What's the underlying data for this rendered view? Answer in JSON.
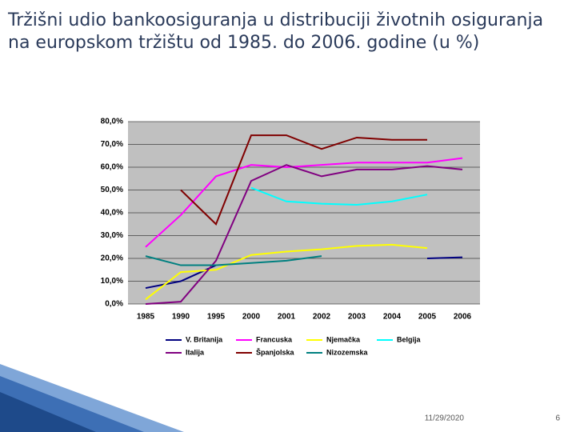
{
  "chart_data": {
    "type": "line",
    "title": "Tržišni udio bankoosiguranja u distribuciji životnih osiguranja na europskom tržištu od 1985. do 2006. godine (u %)",
    "categories": [
      "1985",
      "1990",
      "1995",
      "2000",
      "2001",
      "2002",
      "2003",
      "2004",
      "2005",
      "2006"
    ],
    "series": [
      {
        "name": "V. Britanija",
        "color": "#000080",
        "values": [
          7,
          10,
          17,
          null,
          null,
          null,
          null,
          null,
          20,
          20.5
        ]
      },
      {
        "name": "Francuska",
        "color": "#ff00ff",
        "values": [
          25,
          39,
          56,
          61,
          60,
          61,
          62,
          62,
          62,
          64
        ]
      },
      {
        "name": "Njemačka",
        "color": "#ffff00",
        "values": [
          2,
          14,
          15,
          21.5,
          23,
          24,
          25.5,
          26,
          24.5,
          null
        ]
      },
      {
        "name": "Belgija",
        "color": "#00ffff",
        "values": [
          null,
          null,
          null,
          51,
          45,
          44,
          43.5,
          45,
          48,
          null
        ]
      },
      {
        "name": "Italija",
        "color": "#800080",
        "values": [
          0,
          1,
          19,
          54,
          61,
          56,
          59,
          59,
          60.5,
          59
        ]
      },
      {
        "name": "Španjolska",
        "color": "#800000",
        "values": [
          null,
          50,
          35,
          74,
          74,
          68,
          73,
          72,
          72,
          null
        ]
      },
      {
        "name": "Nizozemska",
        "color": "#008080",
        "values": [
          21,
          17,
          17,
          18,
          19,
          21,
          null,
          null,
          null,
          null
        ]
      }
    ],
    "ylim": [
      0,
      80
    ],
    "yticks": [
      {
        "value": 0,
        "label": "0,0%"
      },
      {
        "value": 10,
        "label": "10,0%"
      },
      {
        "value": 20,
        "label": "20,0%"
      },
      {
        "value": 30,
        "label": "30,0%"
      },
      {
        "value": 40,
        "label": "40,0%"
      },
      {
        "value": 50,
        "label": "50,0%"
      },
      {
        "value": 60,
        "label": "60,0%"
      },
      {
        "value": 70,
        "label": "70,0%"
      },
      {
        "value": 80,
        "label": "80,0%"
      }
    ],
    "grid": true,
    "legend": "bottom"
  },
  "footer": {
    "date": "11/29/2020",
    "page": "6"
  }
}
